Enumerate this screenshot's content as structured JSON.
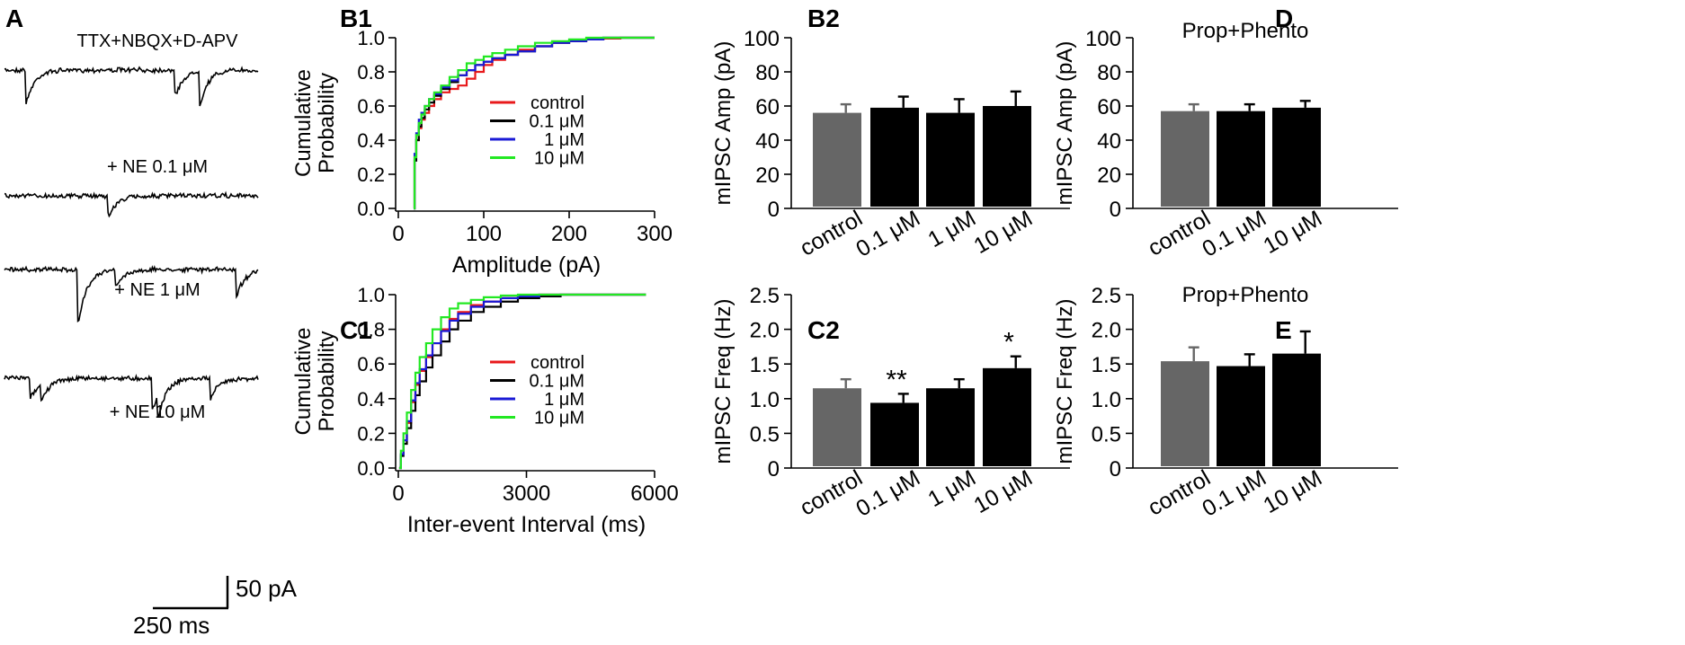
{
  "panel_letters": {
    "A": "A",
    "B1": "B1",
    "B2": "B2",
    "C1": "C1",
    "C2": "C2",
    "D": "D",
    "E": "E"
  },
  "traces": {
    "labels": [
      "TTX+NBQX+D-APV",
      "+ NE 0.1 μM",
      "+ NE 1 μM",
      "+ NE 10 μM"
    ],
    "color": "#000000",
    "scale_bar": {
      "current_label": "50 pA",
      "time_label": "250 ms"
    }
  },
  "colors": {
    "control": "#e8191b",
    "nm01": "#000000",
    "nm1": "#1a1ad6",
    "nm10": "#22e822",
    "control_bar": "#666666",
    "drug_bar": "#000000"
  },
  "chart_data": [
    {
      "id": "B1",
      "type": "line",
      "title": "",
      "xlabel": "Amplitude (pA)",
      "ylabel_line1": "Cumulative",
      "ylabel_line2": "Probability",
      "xlim": [
        0,
        300
      ],
      "ylim": [
        0,
        1
      ],
      "xticks": [
        "0",
        "100",
        "200",
        "300"
      ],
      "xtick_values": [
        0,
        100,
        200,
        300
      ],
      "yticks": [
        "0.0",
        "0.2",
        "0.4",
        "0.6",
        "0.8",
        "1.0"
      ],
      "ytick_values": [
        0,
        0.2,
        0.4,
        0.6,
        0.8,
        1.0
      ],
      "legend": [
        "control",
        "0.1 μM",
        "1 μM",
        "10 μM"
      ],
      "series": [
        {
          "name": "control",
          "color": "#e8191b",
          "x": [
            18,
            19,
            21,
            24,
            27,
            31,
            36,
            42,
            50,
            60,
            70,
            80,
            90,
            100,
            110,
            125,
            140,
            160,
            180,
            200,
            220,
            240,
            260,
            300
          ],
          "y": [
            0,
            0.3,
            0.4,
            0.47,
            0.52,
            0.56,
            0.6,
            0.64,
            0.68,
            0.7,
            0.72,
            0.76,
            0.8,
            0.84,
            0.87,
            0.9,
            0.93,
            0.95,
            0.97,
            0.98,
            0.99,
            0.995,
            1,
            1
          ]
        },
        {
          "name": "0.1 μM",
          "color": "#000000",
          "x": [
            18,
            19,
            21,
            24,
            27,
            31,
            36,
            42,
            50,
            60,
            70,
            80,
            90,
            100,
            110,
            125,
            140,
            160,
            180,
            200,
            220,
            240,
            300
          ],
          "y": [
            0,
            0.28,
            0.4,
            0.48,
            0.53,
            0.58,
            0.62,
            0.66,
            0.7,
            0.74,
            0.78,
            0.81,
            0.84,
            0.86,
            0.88,
            0.9,
            0.92,
            0.95,
            0.97,
            0.98,
            0.99,
            1,
            1
          ]
        },
        {
          "name": "1 μM",
          "color": "#1a1ad6",
          "x": [
            18,
            19,
            21,
            24,
            27,
            31,
            36,
            42,
            50,
            60,
            70,
            80,
            90,
            100,
            110,
            125,
            140,
            160,
            180,
            200,
            220,
            240,
            300
          ],
          "y": [
            0,
            0.32,
            0.44,
            0.52,
            0.56,
            0.6,
            0.64,
            0.67,
            0.71,
            0.75,
            0.78,
            0.81,
            0.84,
            0.86,
            0.88,
            0.9,
            0.92,
            0.95,
            0.97,
            0.98,
            0.99,
            1,
            1
          ]
        },
        {
          "name": "10 μM",
          "color": "#22e822",
          "x": [
            18,
            19,
            21,
            24,
            27,
            31,
            36,
            42,
            50,
            60,
            70,
            80,
            90,
            100,
            110,
            125,
            140,
            160,
            180,
            200,
            220,
            300
          ],
          "y": [
            0,
            0.3,
            0.43,
            0.5,
            0.55,
            0.6,
            0.64,
            0.68,
            0.72,
            0.77,
            0.81,
            0.85,
            0.87,
            0.89,
            0.91,
            0.93,
            0.95,
            0.97,
            0.98,
            0.99,
            1,
            1
          ]
        }
      ]
    },
    {
      "id": "C1",
      "type": "line",
      "title": "",
      "xlabel": "Inter-event Interval (ms)",
      "ylabel_line1": "Cumulative",
      "ylabel_line2": "Probability",
      "xlim": [
        0,
        6000
      ],
      "ylim": [
        0,
        1
      ],
      "xticks": [
        "0",
        "3000",
        "6000"
      ],
      "xtick_values": [
        0,
        3000,
        6000
      ],
      "yticks": [
        "0.0",
        "0.2",
        "0.4",
        "0.6",
        "0.8",
        "1.0"
      ],
      "ytick_values": [
        0,
        0.2,
        0.4,
        0.6,
        0.8,
        1.0
      ],
      "legend": [
        "control",
        "0.1 μM",
        "1 μM",
        "10 μM"
      ],
      "series": [
        {
          "name": "control",
          "color": "#e8191b",
          "x": [
            20,
            60,
            120,
            200,
            300,
            400,
            500,
            650,
            800,
            1000,
            1200,
            1400,
            1700,
            2000,
            2400,
            2800,
            3300,
            3800,
            5800
          ],
          "y": [
            0,
            0.08,
            0.16,
            0.26,
            0.38,
            0.48,
            0.56,
            0.64,
            0.72,
            0.8,
            0.86,
            0.9,
            0.94,
            0.96,
            0.98,
            0.99,
            1,
            1,
            1
          ]
        },
        {
          "name": "0.1 μM",
          "color": "#000000",
          "x": [
            20,
            60,
            120,
            200,
            300,
            400,
            500,
            650,
            800,
            1000,
            1200,
            1400,
            1700,
            2000,
            2400,
            2800,
            3300,
            3800,
            5800
          ],
          "y": [
            0,
            0.07,
            0.14,
            0.23,
            0.33,
            0.42,
            0.5,
            0.58,
            0.65,
            0.73,
            0.8,
            0.85,
            0.9,
            0.93,
            0.96,
            0.98,
            0.99,
            1,
            1
          ]
        },
        {
          "name": "1 μM",
          "color": "#1a1ad6",
          "x": [
            20,
            60,
            120,
            200,
            300,
            400,
            500,
            650,
            800,
            1000,
            1200,
            1400,
            1700,
            2000,
            2400,
            2800,
            3300,
            3800,
            5800
          ],
          "y": [
            0,
            0.08,
            0.16,
            0.27,
            0.39,
            0.49,
            0.57,
            0.65,
            0.72,
            0.79,
            0.85,
            0.89,
            0.93,
            0.96,
            0.98,
            0.99,
            1,
            1,
            1
          ]
        },
        {
          "name": "10 μM",
          "color": "#22e822",
          "x": [
            20,
            60,
            120,
            200,
            300,
            400,
            500,
            650,
            800,
            1000,
            1200,
            1400,
            1700,
            2000,
            2400,
            2800,
            3300,
            5800
          ],
          "y": [
            0,
            0.1,
            0.2,
            0.32,
            0.45,
            0.55,
            0.64,
            0.72,
            0.8,
            0.87,
            0.92,
            0.95,
            0.97,
            0.985,
            0.995,
            1,
            1,
            1
          ]
        }
      ]
    },
    {
      "id": "B2",
      "type": "bar",
      "title": "",
      "ylabel": "mIPSC Amp (pA)",
      "ylim": [
        0,
        100
      ],
      "yticks": [
        "0",
        "20",
        "40",
        "60",
        "80",
        "100"
      ],
      "ytick_values": [
        0,
        20,
        40,
        60,
        80,
        100
      ],
      "categories": [
        "control",
        "0.1 μM",
        "1 μM",
        "10 μM"
      ],
      "values": [
        56,
        59,
        56,
        60
      ],
      "errors": [
        5,
        6.5,
        8,
        8.5
      ],
      "bar_colors": [
        "#666666",
        "#000000",
        "#000000",
        "#000000"
      ],
      "annotations": [
        "",
        "",
        "",
        ""
      ]
    },
    {
      "id": "C2",
      "type": "bar",
      "title": "",
      "ylabel": "mIPSC Freq (Hz)",
      "ylim": [
        0,
        2.5
      ],
      "yticks": [
        "0",
        "0.5",
        "1.0",
        "1.5",
        "2.0",
        "2.5"
      ],
      "ytick_values": [
        0,
        0.5,
        1.0,
        1.5,
        2.0,
        2.5
      ],
      "categories": [
        "control",
        "0.1 μM",
        "1 μM",
        "10 μM"
      ],
      "values": [
        1.15,
        0.94,
        1.15,
        1.44
      ],
      "errors": [
        0.13,
        0.13,
        0.13,
        0.17
      ],
      "bar_colors": [
        "#666666",
        "#000000",
        "#000000",
        "#000000"
      ],
      "annotations": [
        "",
        "**",
        "",
        "*"
      ]
    },
    {
      "id": "D",
      "type": "bar",
      "title": "Prop+Phento",
      "ylabel": "mIPSC Amp (pA)",
      "ylim": [
        0,
        100
      ],
      "yticks": [
        "0",
        "20",
        "40",
        "60",
        "80",
        "100"
      ],
      "ytick_values": [
        0,
        20,
        40,
        60,
        80,
        100
      ],
      "categories": [
        "control",
        "0.1 μM",
        "10 μM"
      ],
      "values": [
        57,
        57,
        59
      ],
      "errors": [
        4,
        4,
        4
      ],
      "bar_colors": [
        "#666666",
        "#000000",
        "#000000"
      ],
      "annotations": [
        "",
        "",
        ""
      ]
    },
    {
      "id": "E",
      "type": "bar",
      "title": "Prop+Phento",
      "ylabel": "mIPSC Freq (Hz)",
      "ylim": [
        0,
        2.5
      ],
      "yticks": [
        "0",
        "0.5",
        "1.0",
        "1.5",
        "2.0",
        "2.5"
      ],
      "ytick_values": [
        0,
        0.5,
        1.0,
        1.5,
        2.0,
        2.5
      ],
      "categories": [
        "control",
        "0.1 μM",
        "10 μM"
      ],
      "values": [
        1.54,
        1.47,
        1.65
      ],
      "errors": [
        0.2,
        0.17,
        0.32
      ],
      "bar_colors": [
        "#666666",
        "#000000",
        "#000000"
      ],
      "annotations": [
        "",
        "",
        ""
      ]
    }
  ]
}
